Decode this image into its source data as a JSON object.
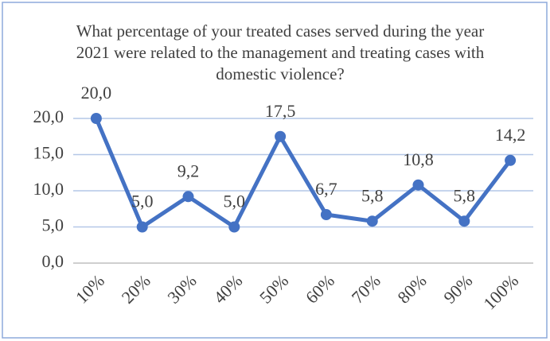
{
  "chart_data": {
    "type": "line",
    "title": "What percentage of your treated cases served during the year 2021 were related to the management and treating cases with domestic violence?",
    "categories": [
      "10%",
      "20%",
      "30%",
      "40%",
      "50%",
      "60%",
      "70%",
      "80%",
      "90%",
      "100%"
    ],
    "series": [
      {
        "color": "#4472c4",
        "values": [
          20.0,
          5.0,
          9.2,
          5.0,
          17.5,
          6.7,
          5.8,
          10.8,
          5.8,
          14.2
        ],
        "value_labels": [
          "20,0",
          "5,0",
          "9,2",
          "5,0",
          "17,5",
          "6,7",
          "5,8",
          "10,8",
          "5,8",
          "14,2"
        ]
      }
    ],
    "ylim": [
      0,
      20
    ],
    "yticks": [
      {
        "value": 0,
        "label": "0,0"
      },
      {
        "value": 5,
        "label": "5,0"
      },
      {
        "value": 10,
        "label": "10,0"
      },
      {
        "value": 15,
        "label": "15,0"
      },
      {
        "value": 20,
        "label": "20,0"
      }
    ],
    "grid": true
  }
}
